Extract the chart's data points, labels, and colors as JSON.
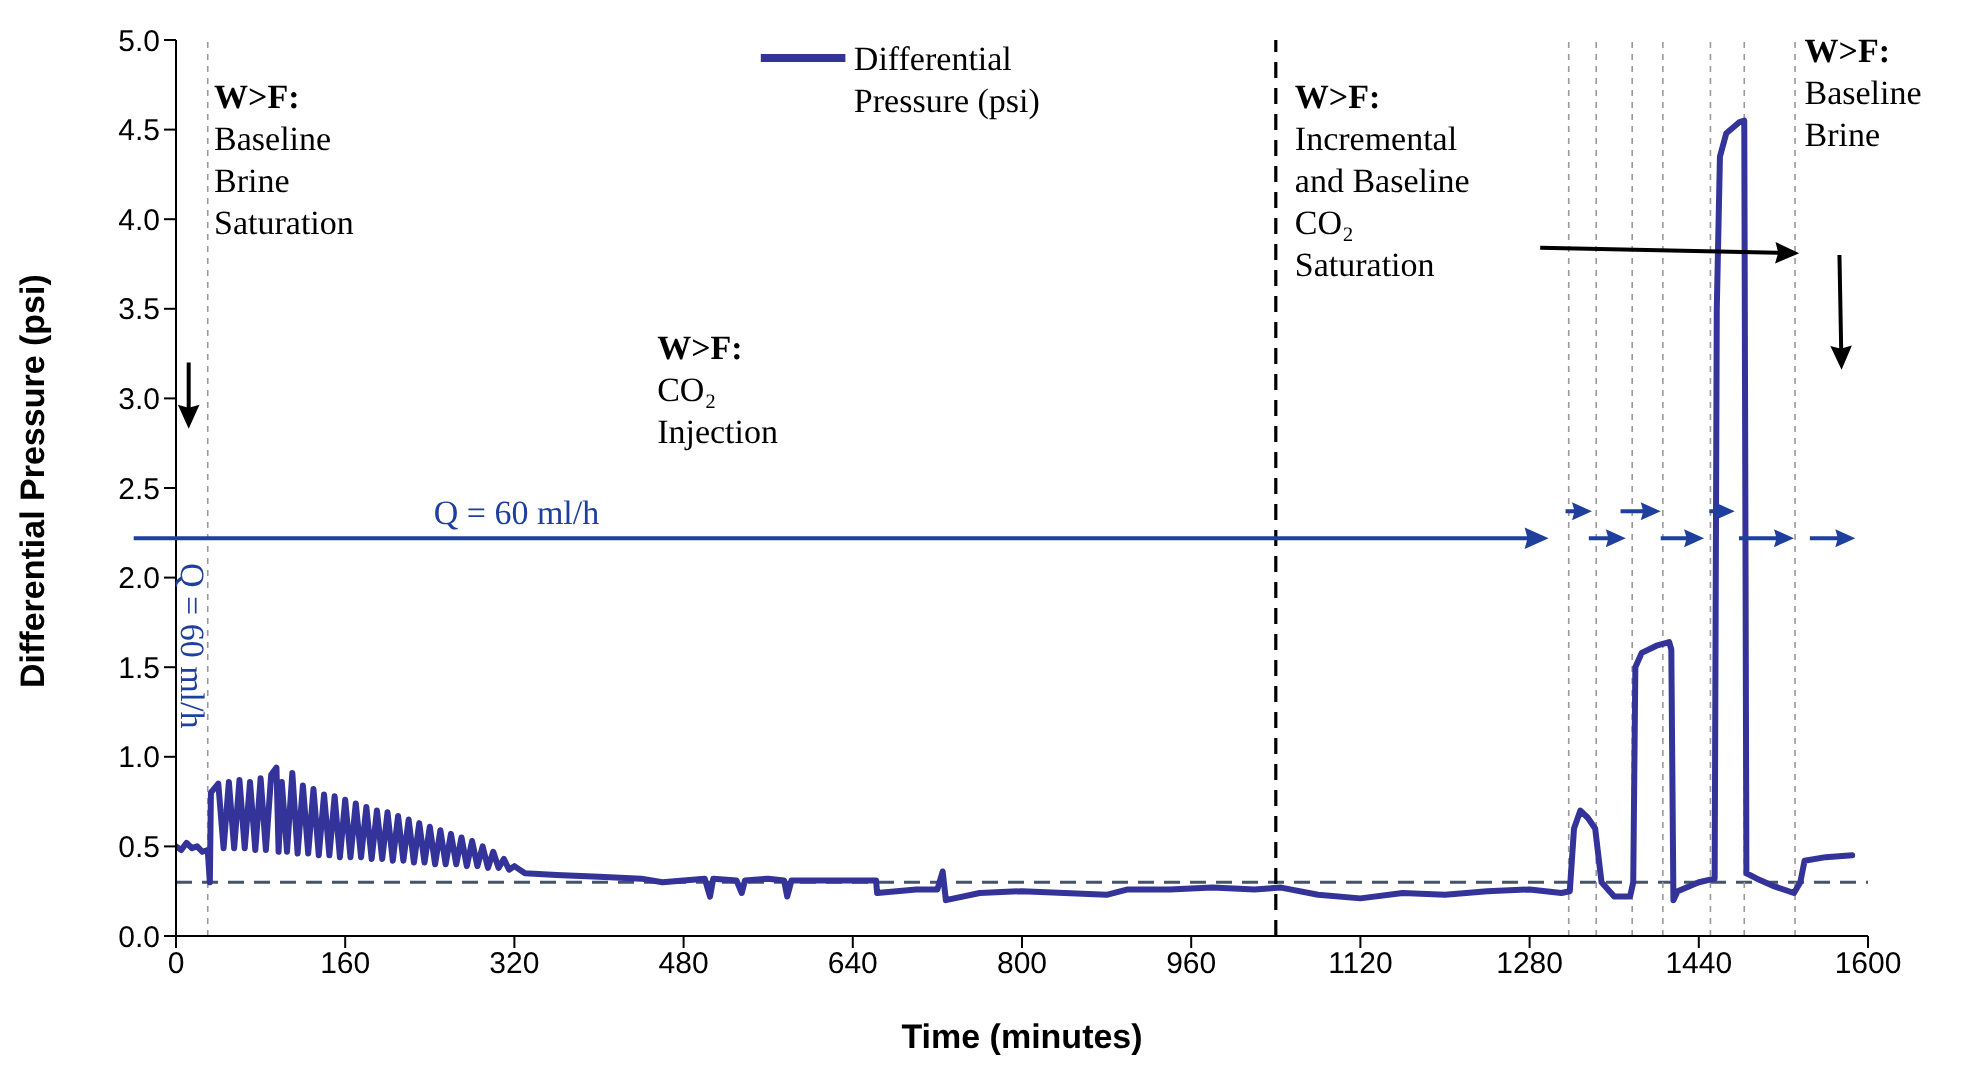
{
  "chart_data": {
    "type": "line",
    "xlabel": "Time (minutes)",
    "ylabel": "Differential Pressure (psi)",
    "xlim": [
      0,
      1600
    ],
    "xticks": [
      0,
      160,
      320,
      480,
      640,
      800,
      960,
      1120,
      1280,
      1440,
      1600
    ],
    "ylim": [
      0,
      5
    ],
    "yticks": [
      {
        "value": 0,
        "label": "0.0"
      },
      {
        "value": 0.5,
        "label": "0.5"
      },
      {
        "value": 1,
        "label": "1.0"
      },
      {
        "value": 1.5,
        "label": "1.5"
      },
      {
        "value": 2,
        "label": "2.0"
      },
      {
        "value": 2.5,
        "label": "2.5"
      },
      {
        "value": 3,
        "label": "3.0"
      },
      {
        "value": 3.5,
        "label": "3.5"
      },
      {
        "value": 4,
        "label": "4.0"
      },
      {
        "value": 4.5,
        "label": "4.5"
      },
      {
        "value": 5,
        "label": "5.0"
      }
    ],
    "grid": false,
    "legend": "top",
    "marker": "none",
    "line_style": "solid",
    "series": [
      {
        "name": "Differential Pressure (psi)",
        "color": "#333399",
        "x": [
          0,
          5,
          10,
          15,
          20,
          25,
          30,
          32,
          33,
          40,
          45,
          50,
          55,
          60,
          65,
          70,
          75,
          80,
          85,
          90,
          95,
          97,
          100,
          105,
          110,
          115,
          120,
          125,
          130,
          135,
          140,
          145,
          150,
          155,
          160,
          165,
          170,
          175,
          180,
          185,
          190,
          195,
          200,
          205,
          210,
          215,
          220,
          225,
          230,
          235,
          240,
          245,
          250,
          255,
          260,
          265,
          270,
          275,
          280,
          285,
          290,
          295,
          300,
          305,
          310,
          315,
          320,
          330,
          360,
          400,
          440,
          460,
          480,
          500,
          505,
          508,
          530,
          535,
          538,
          560,
          575,
          578,
          582,
          620,
          650,
          662,
          663,
          700,
          720,
          725,
          728,
          760,
          800,
          840,
          880,
          900,
          940,
          980,
          1020,
          1045,
          1080,
          1120,
          1160,
          1200,
          1240,
          1280,
          1310,
          1318,
          1322,
          1328,
          1335,
          1342,
          1348,
          1360,
          1375,
          1378,
          1380,
          1386,
          1400,
          1412,
          1414,
          1416,
          1420,
          1440,
          1455,
          1457,
          1460,
          1466,
          1478,
          1483,
          1485,
          1495,
          1510,
          1530,
          1536,
          1540,
          1560,
          1585
        ],
        "values": [
          0.5,
          0.48,
          0.52,
          0.49,
          0.5,
          0.47,
          0.48,
          0.3,
          0.8,
          0.85,
          0.49,
          0.86,
          0.49,
          0.87,
          0.49,
          0.86,
          0.48,
          0.88,
          0.48,
          0.9,
          0.94,
          0.47,
          0.86,
          0.47,
          0.91,
          0.46,
          0.84,
          0.46,
          0.82,
          0.45,
          0.79,
          0.45,
          0.78,
          0.44,
          0.76,
          0.44,
          0.74,
          0.44,
          0.72,
          0.43,
          0.7,
          0.43,
          0.69,
          0.42,
          0.67,
          0.42,
          0.65,
          0.41,
          0.63,
          0.41,
          0.61,
          0.4,
          0.59,
          0.4,
          0.57,
          0.4,
          0.55,
          0.39,
          0.53,
          0.39,
          0.5,
          0.38,
          0.47,
          0.38,
          0.43,
          0.37,
          0.39,
          0.35,
          0.34,
          0.33,
          0.32,
          0.3,
          0.31,
          0.32,
          0.22,
          0.32,
          0.31,
          0.24,
          0.31,
          0.32,
          0.31,
          0.22,
          0.31,
          0.31,
          0.31,
          0.31,
          0.24,
          0.26,
          0.26,
          0.36,
          0.2,
          0.24,
          0.25,
          0.24,
          0.23,
          0.26,
          0.26,
          0.27,
          0.26,
          0.27,
          0.23,
          0.21,
          0.24,
          0.23,
          0.25,
          0.26,
          0.24,
          0.25,
          0.6,
          0.7,
          0.66,
          0.6,
          0.3,
          0.22,
          0.22,
          0.3,
          1.5,
          1.58,
          1.62,
          1.64,
          1.6,
          0.2,
          0.25,
          0.3,
          0.32,
          3.5,
          4.35,
          4.48,
          4.54,
          4.55,
          0.35,
          0.32,
          0.28,
          0.24,
          0.3,
          0.42,
          0.44,
          0.45
        ]
      }
    ],
    "ref_lines": [
      {
        "axis": "y",
        "value": 0.3,
        "color": "#44546a",
        "line_style": "dashed"
      },
      {
        "axis": "x",
        "value": 1040,
        "color": "#000000",
        "line_style": "dashed"
      },
      {
        "axis": "x",
        "value": 30,
        "color": "#999999",
        "line_style": "dotted"
      },
      {
        "axis": "x",
        "value": 1317,
        "color": "#999999",
        "line_style": "dotted"
      },
      {
        "axis": "x",
        "value": 1343,
        "color": "#999999",
        "line_style": "dotted"
      },
      {
        "axis": "x",
        "value": 1377,
        "color": "#999999",
        "line_style": "dotted"
      },
      {
        "axis": "x",
        "value": 1406,
        "color": "#999999",
        "line_style": "dotted"
      },
      {
        "axis": "x",
        "value": 1451,
        "color": "#999999",
        "line_style": "dotted"
      },
      {
        "axis": "x",
        "value": 1483,
        "color": "#999999",
        "line_style": "dotted"
      },
      {
        "axis": "x",
        "value": 1531,
        "color": "#999999",
        "line_style": "dotted"
      }
    ],
    "annotations": [
      "W>F:\nBaseline\nBrine\nSaturation",
      "W>F:\nCO₂\nInjection",
      "W>F:\nIncremental\nand Baseline\nCO₂\nSaturation",
      "W>F:\nBaseline\nBrine",
      "Q = 60 ml/h",
      "Q = 60 ml/h"
    ]
  }
}
